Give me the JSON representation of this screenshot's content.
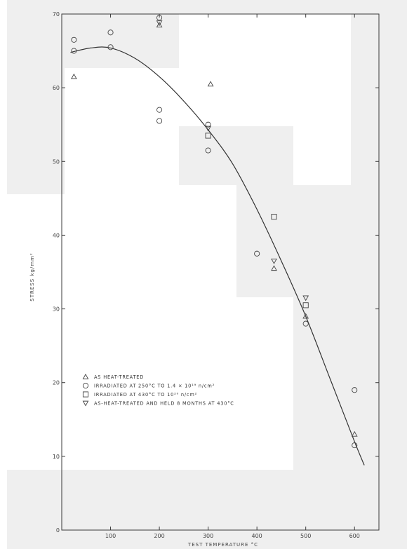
{
  "chart_data": {
    "type": "scatter",
    "title": "",
    "xlabel": "TEST TEMPERATURE °C",
    "ylabel": "STRESS kg/mm²",
    "xlim": [
      0,
      650
    ],
    "ylim": [
      0,
      70
    ],
    "x_ticks": [
      {
        "value": 100,
        "label": "100"
      },
      {
        "value": 200,
        "label": "200"
      },
      {
        "value": 300,
        "label": "300"
      },
      {
        "value": 400,
        "label": "400"
      },
      {
        "value": 500,
        "label": "500"
      },
      {
        "value": 600,
        "label": "600"
      }
    ],
    "y_ticks": [
      {
        "value": 0,
        "label": "0"
      },
      {
        "value": 10,
        "label": "10"
      },
      {
        "value": 20,
        "label": "20"
      },
      {
        "value": 30,
        "label": "30"
      },
      {
        "value": 40,
        "label": "40"
      },
      {
        "value": 50,
        "label": "50"
      },
      {
        "value": 60,
        "label": "60"
      },
      {
        "value": 70,
        "label": "70"
      }
    ],
    "grid": false,
    "legend_position": "bottom-left",
    "series": [
      {
        "name": "AS HEAT-TREATED",
        "marker": "triangle-up",
        "points": [
          [
            25,
            61.5
          ],
          [
            200,
            68.5
          ],
          [
            305,
            60.5
          ],
          [
            435,
            35.5
          ],
          [
            500,
            29
          ],
          [
            600,
            13
          ]
        ]
      },
      {
        "name": "IRRADIATED AT 250°C TO 1.4 × 10¹⁹ n/cm²",
        "marker": "circle",
        "points": [
          [
            25,
            66.5
          ],
          [
            25,
            65
          ],
          [
            100,
            67.5
          ],
          [
            100,
            65.5
          ],
          [
            200,
            69.5
          ],
          [
            200,
            57
          ],
          [
            200,
            55.5
          ],
          [
            300,
            55
          ],
          [
            300,
            51.5
          ],
          [
            400,
            37.5
          ],
          [
            500,
            28
          ],
          [
            600,
            19
          ],
          [
            600,
            11.5
          ]
        ]
      },
      {
        "name": "IRRADIATED AT 430°C TO 10²⁰ n/cm²",
        "marker": "square",
        "points": [
          [
            300,
            53.5
          ],
          [
            435,
            42.5
          ],
          [
            500,
            30.5
          ]
        ]
      },
      {
        "name": "AS-HEAT-TREATED AND HELD 8 MONTHS AT 430°C",
        "marker": "triangle-down",
        "points": [
          [
            200,
            68.8
          ],
          [
            300,
            54.5
          ],
          [
            435,
            36.5
          ],
          [
            500,
            31.5
          ]
        ]
      }
    ],
    "trend_curve": {
      "name": "",
      "points": [
        [
          18,
          64.8
        ],
        [
          60,
          65.4
        ],
        [
          100,
          65.4
        ],
        [
          150,
          64
        ],
        [
          200,
          61.5
        ],
        [
          250,
          58.2
        ],
        [
          300,
          54.3
        ],
        [
          350,
          49.7
        ],
        [
          400,
          43.5
        ],
        [
          450,
          36.5
        ],
        [
          500,
          29
        ],
        [
          550,
          20.5
        ],
        [
          600,
          12
        ],
        [
          620,
          8.8
        ]
      ]
    }
  }
}
